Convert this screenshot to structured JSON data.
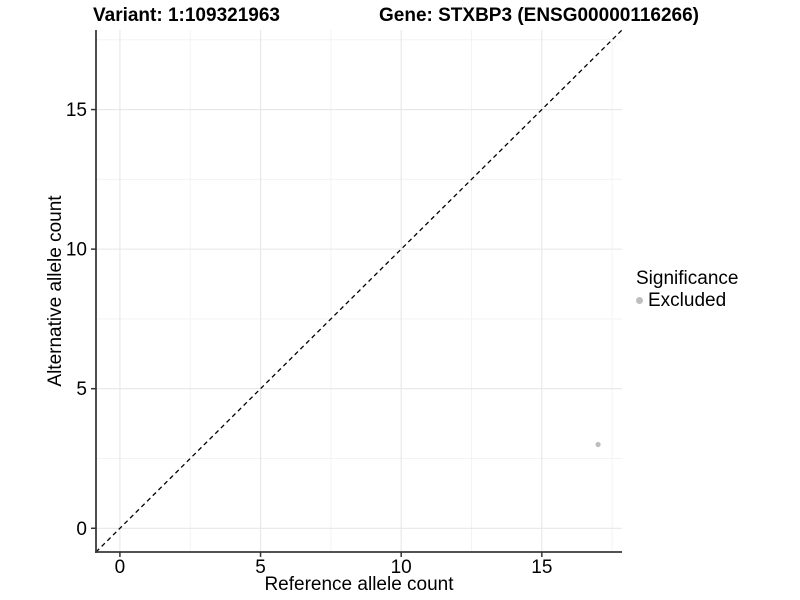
{
  "chart_data": {
    "type": "scatter",
    "titles": {
      "variant": "Variant: 1:109321963",
      "gene": "Gene: STXBP3 (ENSG00000116266)"
    },
    "xlabel": "Reference allele count",
    "ylabel": "Alternative allele count",
    "xlim": [
      -0.85,
      17.85
    ],
    "ylim": [
      -0.85,
      17.85
    ],
    "x_ticks": [
      0,
      5,
      10,
      15
    ],
    "y_ticks": [
      0,
      5,
      10,
      15
    ],
    "x_minor_ticks": [
      2.5,
      7.5,
      12.5,
      17.5
    ],
    "y_minor_ticks": [
      2.5,
      7.5,
      12.5,
      17.5
    ],
    "grid": "major+minor",
    "identity_line": {
      "style": "dashed",
      "equation": "y = x",
      "from": [
        -0.85,
        -0.85
      ],
      "to": [
        17.85,
        17.85
      ]
    },
    "series": [
      {
        "name": "Excluded",
        "color": "#bebebe",
        "points": [
          {
            "x": 17,
            "y": 3
          }
        ]
      }
    ],
    "legend": {
      "title": "Significance",
      "position": "right",
      "items": [
        {
          "label": "Excluded",
          "color": "#bebebe"
        }
      ]
    },
    "colors": {
      "background": "#ffffff",
      "axis": "#3a3a3a",
      "tick": "#333333",
      "grid_major": "#e7e7e7",
      "grid_minor": "#f3f3f3",
      "identity_line": "#000000",
      "text": "#000000"
    }
  }
}
